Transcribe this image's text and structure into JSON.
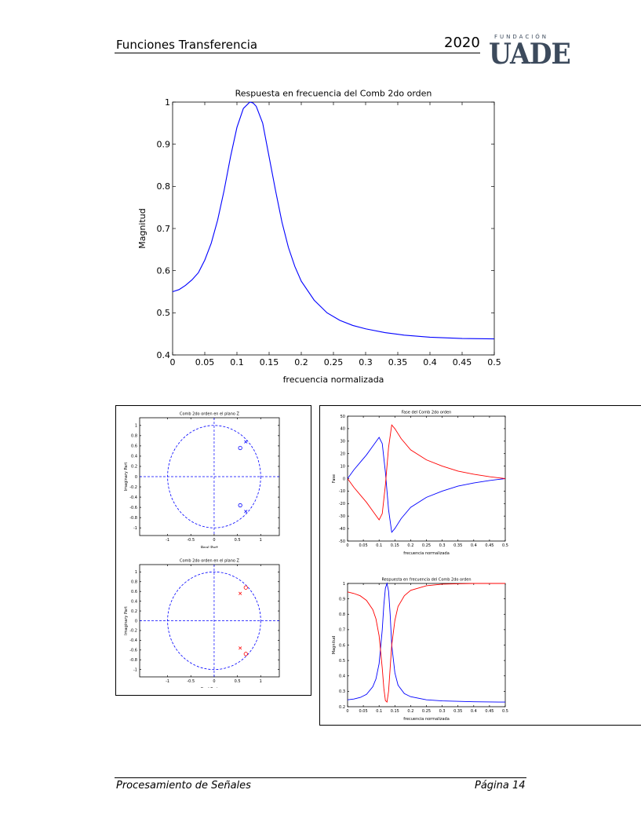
{
  "header": {
    "title": "Funciones Transferencia",
    "year": "2020",
    "logo_small": "FUNDACIÓN",
    "logo_big": "UADE"
  },
  "footer": {
    "left": "Procesamiento de Señales",
    "right": "Página 14"
  },
  "colors": {
    "blue": "#0000ff",
    "red": "#ff0000"
  },
  "chart_data": [
    {
      "type": "line",
      "title": "Respuesta en frecuencia del Comb 2do orden",
      "xlabel": "frecuencia normalizada",
      "ylabel": "Magnitud",
      "xlim": [
        0,
        0.5
      ],
      "ylim": [
        0.4,
        1
      ],
      "xticks": [
        0,
        0.05,
        0.1,
        0.15,
        0.2,
        0.25,
        0.3,
        0.35,
        0.4,
        0.45,
        0.5
      ],
      "xtick_labels": [
        "0",
        "0.05",
        "0.1",
        "0.15",
        "0.2",
        "0.25",
        "0.3",
        "0.35",
        "0.4",
        "0.45",
        "0.5"
      ],
      "yticks": [
        0.4,
        0.5,
        0.6,
        0.7,
        0.8,
        0.9,
        1
      ],
      "ytick_labels": [
        "0.4",
        "0.5",
        "0.6",
        "0.7",
        "0.8",
        "0.9",
        "1"
      ],
      "series": [
        {
          "color": "#0000ff",
          "x": [
            0,
            0.01,
            0.02,
            0.03,
            0.04,
            0.05,
            0.06,
            0.07,
            0.08,
            0.09,
            0.1,
            0.11,
            0.12,
            0.125,
            0.13,
            0.14,
            0.15,
            0.16,
            0.17,
            0.18,
            0.19,
            0.2,
            0.22,
            0.24,
            0.26,
            0.28,
            0.3,
            0.33,
            0.36,
            0.4,
            0.45,
            0.5
          ],
          "y": [
            0.55,
            0.555,
            0.565,
            0.578,
            0.595,
            0.625,
            0.665,
            0.72,
            0.79,
            0.87,
            0.94,
            0.985,
            1.0,
            0.998,
            0.99,
            0.95,
            0.87,
            0.79,
            0.715,
            0.655,
            0.61,
            0.575,
            0.53,
            0.5,
            0.482,
            0.47,
            0.462,
            0.453,
            0.447,
            0.442,
            0.439,
            0.438
          ]
        }
      ]
    },
    {
      "type": "scatter",
      "title": "Comb 2do orden en el plano Z",
      "xlabel": "Real Part",
      "ylabel": "Imaginary Part",
      "xlim": [
        -1.6,
        1.4
      ],
      "ylim": [
        -1.15,
        1.15
      ],
      "xticks": [
        -1,
        -0.5,
        0,
        0.5,
        1
      ],
      "xtick_labels": [
        "-1",
        "-0.5",
        "0",
        "0.5",
        "1"
      ],
      "yticks": [
        -1,
        -0.8,
        -0.6,
        -0.4,
        -0.2,
        0,
        0.2,
        0.4,
        0.6,
        0.8,
        1
      ],
      "ytick_labels": [
        "-1",
        "-0.8",
        "-0.6",
        "-0.4",
        "-0.2",
        "0",
        "0.2",
        "0.4",
        "0.6",
        "0.8",
        "1"
      ],
      "zeros": [
        [
          0.56,
          0.56
        ],
        [
          0.56,
          -0.56
        ]
      ],
      "poles": [
        [
          0.68,
          0.68
        ],
        [
          0.68,
          -0.68
        ]
      ],
      "marker_color": "#0000ff"
    },
    {
      "type": "scatter",
      "title": "Comb 2do orden en el plano Z",
      "xlabel": "Real Part",
      "ylabel": "Imaginary Part",
      "xlim": [
        -1.6,
        1.4
      ],
      "ylim": [
        -1.15,
        1.15
      ],
      "xticks": [
        -1,
        -0.5,
        0,
        0.5,
        1
      ],
      "xtick_labels": [
        "-1",
        "-0.5",
        "0",
        "0.5",
        "1"
      ],
      "yticks": [
        -1,
        -0.8,
        -0.6,
        -0.4,
        -0.2,
        0,
        0.2,
        0.4,
        0.6,
        0.8,
        1
      ],
      "ytick_labels": [
        "-1",
        "-0.8",
        "-0.6",
        "-0.4",
        "-0.2",
        "0",
        "0.2",
        "0.4",
        "0.6",
        "0.8",
        "1"
      ],
      "zeros": [
        [
          0.68,
          0.68
        ],
        [
          0.68,
          -0.68
        ]
      ],
      "poles": [
        [
          0.56,
          0.56
        ],
        [
          0.56,
          -0.56
        ]
      ],
      "marker_color": "#ff0000"
    },
    {
      "type": "line",
      "title": "Fase del Comb 2do orden",
      "xlabel": "frecuencia normalizada",
      "ylabel": "Fase",
      "xlim": [
        0,
        0.5
      ],
      "ylim": [
        -50,
        50
      ],
      "xticks": [
        0,
        0.05,
        0.1,
        0.15,
        0.2,
        0.25,
        0.3,
        0.35,
        0.4,
        0.45,
        0.5
      ],
      "xtick_labels": [
        "0",
        "0.05",
        "0.1",
        "0.15",
        "0.2",
        "0.25",
        "0.3",
        "0.35",
        "0.4",
        "0.45",
        "0.5"
      ],
      "yticks": [
        -50,
        -40,
        -30,
        -20,
        -10,
        0,
        10,
        20,
        30,
        40,
        50
      ],
      "ytick_labels": [
        "-50",
        "-40",
        "-30",
        "-20",
        "-10",
        "0",
        "10",
        "20",
        "30",
        "40",
        "50"
      ],
      "series": [
        {
          "color": "#0000ff",
          "x": [
            0,
            0.02,
            0.04,
            0.06,
            0.08,
            0.1,
            0.11,
            0.12,
            0.13,
            0.14,
            0.15,
            0.17,
            0.2,
            0.25,
            0.3,
            0.35,
            0.4,
            0.45,
            0.5
          ],
          "y": [
            0,
            7,
            13,
            19,
            26,
            33,
            28,
            5,
            -25,
            -43,
            -40,
            -32,
            -23,
            -15,
            -10,
            -6,
            -3.5,
            -1.5,
            0
          ]
        },
        {
          "color": "#ff0000",
          "x": [
            0,
            0.02,
            0.04,
            0.06,
            0.08,
            0.1,
            0.11,
            0.12,
            0.13,
            0.14,
            0.15,
            0.17,
            0.2,
            0.25,
            0.3,
            0.35,
            0.4,
            0.45,
            0.5
          ],
          "y": [
            0,
            -7,
            -13,
            -19,
            -26,
            -33,
            -28,
            -5,
            25,
            43,
            40,
            32,
            23,
            15,
            10,
            6,
            3.5,
            1.5,
            0
          ]
        }
      ]
    },
    {
      "type": "line",
      "title": "Respuesta en frecuencia del Comb 2do orden",
      "xlabel": "frecuencia normalizada",
      "ylabel": "Magnitud",
      "xlim": [
        0,
        0.5
      ],
      "ylim": [
        0.2,
        1
      ],
      "xticks": [
        0,
        0.05,
        0.1,
        0.15,
        0.2,
        0.25,
        0.3,
        0.35,
        0.4,
        0.45,
        0.5
      ],
      "xtick_labels": [
        "0",
        "0.05",
        "0.1",
        "0.15",
        "0.2",
        "0.25",
        "0.3",
        "0.35",
        "0.4",
        "0.45",
        "0.5"
      ],
      "yticks": [
        0.2,
        0.3,
        0.4,
        0.5,
        0.6,
        0.7,
        0.8,
        0.9,
        1
      ],
      "ytick_labels": [
        "0.2",
        "0.3",
        "0.4",
        "0.5",
        "0.6",
        "0.7",
        "0.8",
        "0.9",
        "1"
      ],
      "series": [
        {
          "color": "#0000ff",
          "x": [
            0,
            0.02,
            0.04,
            0.06,
            0.08,
            0.09,
            0.1,
            0.11,
            0.115,
            0.12,
            0.125,
            0.13,
            0.135,
            0.14,
            0.15,
            0.16,
            0.18,
            0.2,
            0.25,
            0.3,
            0.4,
            0.5
          ],
          "y": [
            0.245,
            0.25,
            0.26,
            0.28,
            0.33,
            0.38,
            0.48,
            0.7,
            0.86,
            0.97,
            1.0,
            0.95,
            0.8,
            0.6,
            0.42,
            0.34,
            0.285,
            0.265,
            0.245,
            0.238,
            0.232,
            0.23
          ]
        },
        {
          "color": "#ff0000",
          "x": [
            0,
            0.02,
            0.04,
            0.06,
            0.08,
            0.09,
            0.1,
            0.11,
            0.115,
            0.12,
            0.125,
            0.13,
            0.135,
            0.14,
            0.15,
            0.16,
            0.18,
            0.2,
            0.25,
            0.3,
            0.35,
            0.4,
            0.5
          ],
          "y": [
            0.945,
            0.935,
            0.92,
            0.89,
            0.83,
            0.77,
            0.66,
            0.45,
            0.32,
            0.24,
            0.23,
            0.3,
            0.45,
            0.6,
            0.76,
            0.85,
            0.92,
            0.955,
            0.985,
            0.995,
            0.998,
            1.0,
            1.0
          ]
        }
      ]
    }
  ]
}
